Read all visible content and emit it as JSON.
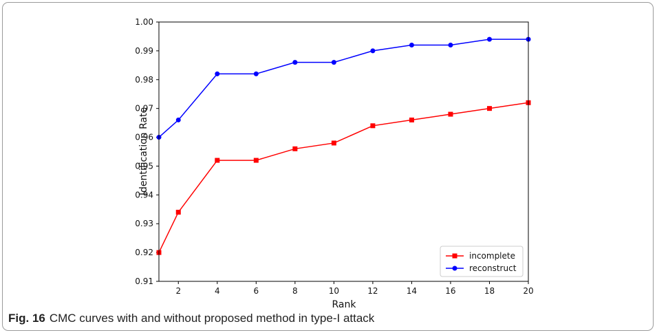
{
  "caption": {
    "label": "Fig. 16",
    "text": "CMC curves with and without proposed method in type-I attack"
  },
  "chart_data": {
    "type": "line",
    "xlabel": "Rank",
    "ylabel": "Identification Rate",
    "xlim": [
      1,
      20
    ],
    "ylim": [
      0.91,
      1.0
    ],
    "xticks": [
      2,
      4,
      6,
      8,
      10,
      12,
      14,
      16,
      18,
      20
    ],
    "yticks": [
      0.91,
      0.92,
      0.93,
      0.94,
      0.95,
      0.96,
      0.97,
      0.98,
      0.99,
      1.0
    ],
    "ytick_labels": [
      "0.91",
      "0.92",
      "0.93",
      "0.94",
      "0.95",
      "0.96",
      "0.97",
      "0.98",
      "0.99",
      "1.00"
    ],
    "x": [
      1,
      2,
      4,
      6,
      8,
      10,
      12,
      14,
      16,
      18,
      20
    ],
    "grid": false,
    "legend_position": "lower-right",
    "series": [
      {
        "name": "incomplete",
        "color": "#ff0000",
        "marker": "square",
        "values": [
          0.92,
          0.934,
          0.952,
          0.952,
          0.956,
          0.958,
          0.964,
          0.966,
          0.968,
          0.97,
          0.972
        ]
      },
      {
        "name": "reconstruct",
        "color": "#0000ff",
        "marker": "circle",
        "values": [
          0.96,
          0.966,
          0.982,
          0.982,
          0.986,
          0.986,
          0.99,
          0.992,
          0.992,
          0.994,
          0.994
        ]
      }
    ]
  }
}
